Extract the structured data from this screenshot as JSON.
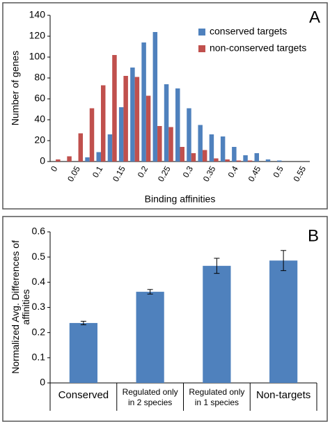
{
  "chart_data": [
    {
      "type": "bar",
      "panel": "A",
      "x_label": "Binding affinities",
      "y_label": "Number of genes",
      "categories": [
        "0",
        null,
        "0.05",
        null,
        "0.1",
        null,
        "0.15",
        null,
        "0.2",
        null,
        "0.25",
        null,
        "0.3",
        null,
        "0.35",
        null,
        "0.4",
        null,
        "0.45",
        null,
        "0.5",
        null,
        "0.55"
      ],
      "series": [
        {
          "name": "conserved targets",
          "color": "#4f81bd",
          "values": [
            0,
            0,
            0,
            4,
            9,
            26,
            52,
            90,
            114,
            124,
            74,
            70,
            51,
            35,
            26,
            24,
            14,
            6,
            8,
            2,
            1,
            0,
            0
          ]
        },
        {
          "name": "non-conserved targets",
          "color": "#c0504d",
          "values": [
            2,
            5,
            27,
            51,
            73,
            102,
            82,
            81,
            63,
            34,
            33,
            14,
            8,
            11,
            3,
            2,
            1,
            1,
            0,
            0,
            0,
            0,
            0
          ]
        }
      ],
      "ylim": [
        0,
        140
      ],
      "yticks": [
        0,
        20,
        40,
        60,
        80,
        100,
        120,
        140
      ],
      "legend": "upper right"
    },
    {
      "type": "bar",
      "panel": "B",
      "y_label": "Normalized Avg. Differences of affinities",
      "categories": [
        "Conserved",
        "Regulated only in 2 species",
        "Regulated only in 1 species",
        "Non-targets"
      ],
      "values": [
        0.238,
        0.362,
        0.465,
        0.486
      ],
      "errors": [
        0.007,
        0.009,
        0.03,
        0.04
      ],
      "color": "#4f81bd",
      "ylim": [
        0,
        0.6
      ],
      "yticks": [
        0,
        0.1,
        0.2,
        0.3,
        0.4,
        0.5,
        0.6
      ]
    }
  ]
}
